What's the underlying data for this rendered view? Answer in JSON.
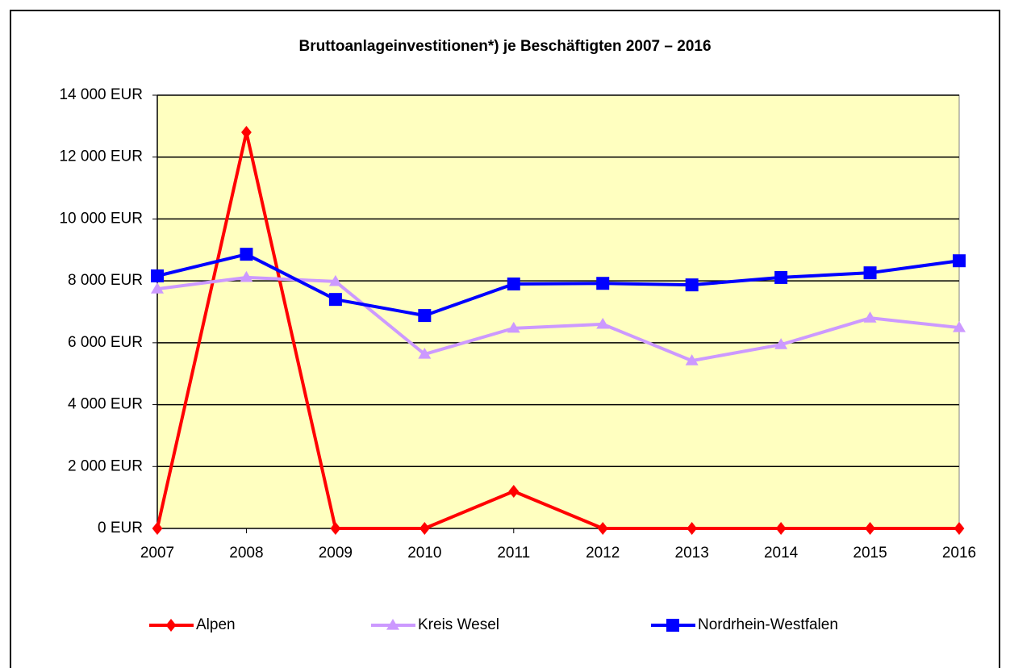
{
  "chart_data": {
    "type": "line",
    "title": "Bruttoanlageinvestitionen*) je Beschäftigten 2007 – 2016",
    "categories": [
      "2007",
      "2008",
      "2009",
      "2010",
      "2011",
      "2012",
      "2013",
      "2014",
      "2015",
      "2016"
    ],
    "series": [
      {
        "name": "Alpen",
        "color": "#ff0000",
        "marker": "diamond",
        "values": [
          0,
          12800,
          0,
          0,
          1200,
          0,
          0,
          0,
          0,
          0
        ]
      },
      {
        "name": "Kreis Wesel",
        "color": "#cc99ff",
        "marker": "triangle",
        "values": [
          7740,
          8110,
          7980,
          5630,
          6470,
          6600,
          5420,
          5940,
          6800,
          6490
        ]
      },
      {
        "name": "Nordrhein-Westfalen",
        "color": "#0000ff",
        "marker": "square",
        "values": [
          8160,
          8860,
          7400,
          6880,
          7900,
          7920,
          7870,
          8110,
          8260,
          8650
        ]
      }
    ],
    "ylim": [
      0,
      14000
    ],
    "yticks": [
      {
        "value": 0,
        "label": "0 EUR"
      },
      {
        "value": 2000,
        "label": "2 000 EUR"
      },
      {
        "value": 4000,
        "label": "4 000 EUR"
      },
      {
        "value": 6000,
        "label": "6 000 EUR"
      },
      {
        "value": 8000,
        "label": "8 000 EUR"
      },
      {
        "value": 10000,
        "label": "10 000 EUR"
      },
      {
        "value": 12000,
        "label": "12 000 EUR"
      },
      {
        "value": 14000,
        "label": "14 000 EUR"
      }
    ],
    "grid": true,
    "legend": "bottom",
    "plot_background": "#ffffc0"
  }
}
